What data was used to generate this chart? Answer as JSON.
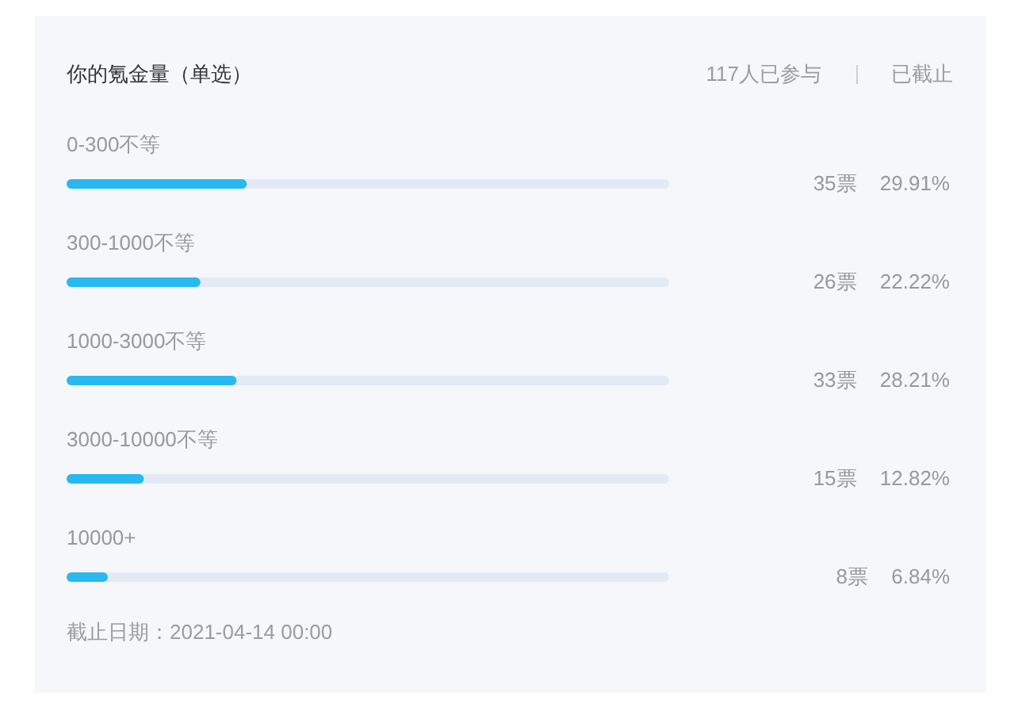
{
  "chart_data": {
    "type": "bar",
    "orientation": "horizontal",
    "title": "你的氪金量（单选）",
    "annotations": [
      "117人已参与",
      "已截止",
      "截止日期：2021-04-14 00:00"
    ],
    "categories": [
      "0-300不等",
      "300-1000不等",
      "1000-3000不等",
      "3000-10000不等",
      "10000+"
    ],
    "values": [
      29.91,
      22.22,
      28.21,
      12.82,
      6.84
    ],
    "value_labels": [
      "35票 29.91%",
      "26票 22.22%",
      "33票 28.21%",
      "15票 12.82%",
      "8票 6.84%"
    ],
    "color": "#27b9ef",
    "tick_labels": "y"
  }
}
